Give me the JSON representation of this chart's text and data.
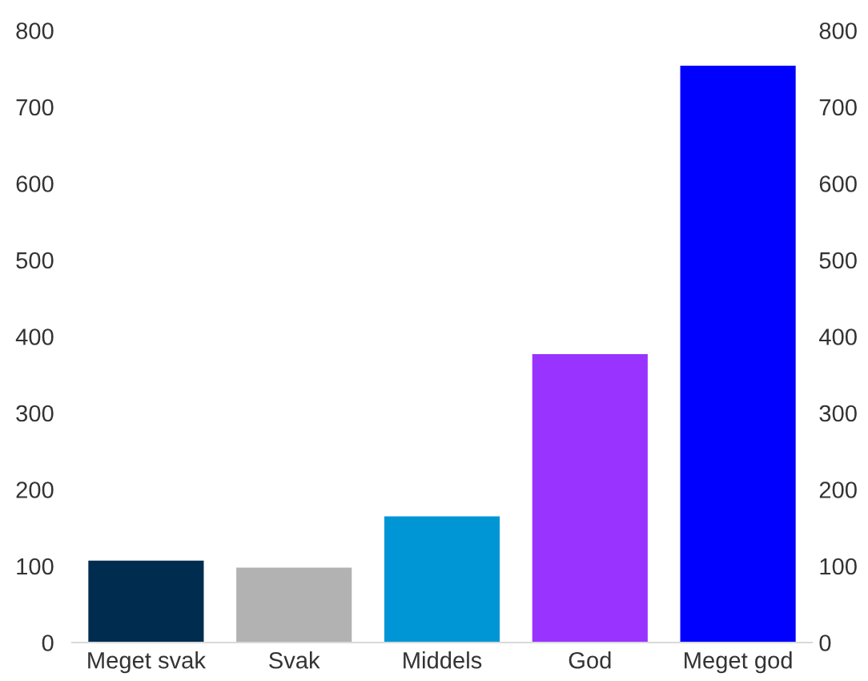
{
  "chart_data": {
    "type": "bar",
    "categories": [
      "Meget svak",
      "Svak",
      "Middels",
      "God",
      "Meget god"
    ],
    "values": [
      107,
      98,
      165,
      377,
      754
    ],
    "colors": [
      "#002d4f",
      "#b2b2b2",
      "#0096d6",
      "#9933ff",
      "#0000ff"
    ],
    "ylim": [
      0,
      800
    ],
    "yticks": [
      0,
      100,
      200,
      300,
      400,
      500,
      600,
      700,
      800
    ],
    "y2lim": [
      0,
      800
    ],
    "y2ticks": [
      0,
      100,
      200,
      300,
      400,
      500,
      600,
      700,
      800
    ],
    "grid": false,
    "legend": false
  }
}
